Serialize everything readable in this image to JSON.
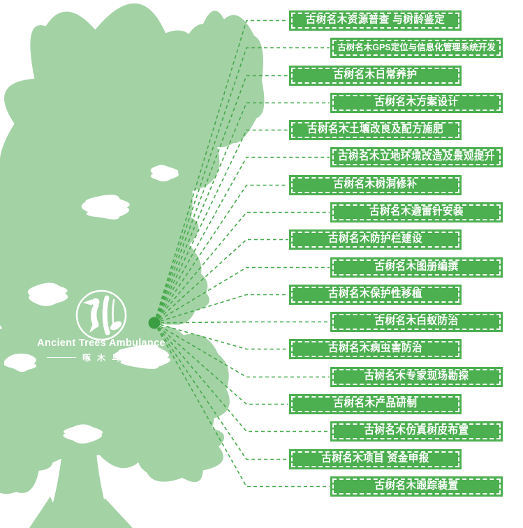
{
  "logo": {
    "title_en": "Ancient Trees Ambulance",
    "title_zh": "啄木鸟",
    "emblem": "woodpecker-in-circle"
  },
  "palette": {
    "tree_green": "#A3D2A5",
    "box_green": "#4CAF50",
    "line_green": "#46A94B",
    "dot_green": "#3C9E43",
    "text_white": "#FFFFFF"
  },
  "services": [
    {
      "label": "古树名木资源普查 与树龄鉴定"
    },
    {
      "label": "古树名木GPS定位与信息化管理系统开发"
    },
    {
      "label": "古树名木日常养护"
    },
    {
      "label": "古树名木方案设计"
    },
    {
      "label": "古树名木土壤改良及配方施肥"
    },
    {
      "label": "古树名木立地环境改造及景观提升"
    },
    {
      "label": "古树名木树洞修补"
    },
    {
      "label": "古树名木避雷针安装"
    },
    {
      "label": "古树名木防护栏建设"
    },
    {
      "label": "古树名木图册编撰"
    },
    {
      "label": "古树名木保护性移植"
    },
    {
      "label": "古树名木白蚁防治"
    },
    {
      "label": "古树名木病虫害防治"
    },
    {
      "label": "古树名木专家现场勘探"
    },
    {
      "label": "古树名木产品研制"
    },
    {
      "label": "古树名木仿真树皮布置"
    },
    {
      "label": "古树名木项目 资金申报"
    },
    {
      "label": "古树名木跟踪装置"
    }
  ]
}
